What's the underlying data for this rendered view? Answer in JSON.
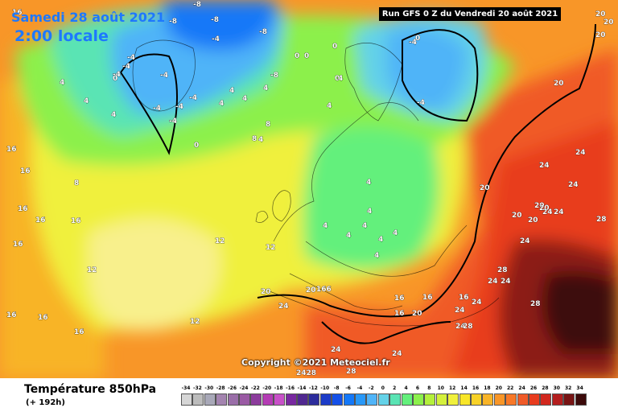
{
  "header": {
    "date_line": "Samedi 28 août 2021",
    "time_line": "2:00 locale",
    "run_info": "Run GFS 0 Z du Vendredi 20 août 2021",
    "copyright": "Copyright ©2021 Meteociel.fr"
  },
  "footer": {
    "product_title": "Température 850hPa",
    "product_subtitle": "(+ 192h)"
  },
  "scale": {
    "labels": [
      "-34",
      "-32",
      "-30",
      "-28",
      "-26",
      "-24",
      "-22",
      "-20",
      "-18",
      "-16",
      "-14",
      "-12",
      "-10",
      "-8",
      "-6",
      "-4",
      "-2",
      "0",
      "2",
      "4",
      "6",
      "8",
      "10",
      "12",
      "14",
      "16",
      "18",
      "20",
      "22",
      "24",
      "26",
      "28",
      "30",
      "32",
      "34"
    ],
    "colors": [
      "#d6d6d6",
      "#bcbcbc",
      "#a8a8b8",
      "#a484b0",
      "#9a6ea8",
      "#9a5aa4",
      "#8c3c9c",
      "#b43cb4",
      "#c850c8",
      "#7828a0",
      "#502890",
      "#2c2c9c",
      "#1c3cc8",
      "#1450e8",
      "#1478f8",
      "#2898f8",
      "#50b4f8",
      "#64d2e8",
      "#5ae4b4",
      "#64f07c",
      "#8cf04c",
      "#b4f03c",
      "#d4f03c",
      "#f0f03c",
      "#f8e628",
      "#f8d228",
      "#f8b428",
      "#f89628",
      "#f87828",
      "#f05a28",
      "#e83c1e",
      "#d2281e",
      "#b41e1e",
      "#781414",
      "#3c0a0a"
    ]
  },
  "map_labels": {
    "cold": [
      "-8",
      "-8",
      "-8",
      "-8",
      "-8",
      "-4",
      "-4",
      "-4",
      "-4",
      "-4",
      "-4",
      "-4",
      "-4",
      "-4",
      "-4",
      "-4"
    ],
    "neutral": [
      "0",
      "0",
      "0",
      "0",
      "0",
      "0",
      "0"
    ],
    "cool": [
      "4",
      "4",
      "4",
      "4",
      "4",
      "4",
      "4",
      "4",
      "4",
      "4",
      "4",
      "4",
      "4",
      "4",
      "4",
      "4",
      "4",
      "4"
    ],
    "mild": [
      "8",
      "8",
      "8",
      "12",
      "12",
      "12",
      "12"
    ],
    "warm": [
      "16",
      "16",
      "16",
      "16",
      "16",
      "16",
      "16",
      "16",
      "16",
      "16",
      "16",
      "16",
      "16",
      "16",
      "166"
    ],
    "hot": [
      "20",
      "20",
      "20",
      "20",
      "20",
      "20",
      "20",
      "20",
      "20",
      "20",
      "20",
      "20",
      "24",
      "24",
      "24",
      "24",
      "24",
      "24",
      "24",
      "24",
      "24",
      "24",
      "24",
      "24",
      "24",
      "24",
      "2428",
      "28",
      "28",
      "28",
      "28",
      "28"
    ]
  }
}
